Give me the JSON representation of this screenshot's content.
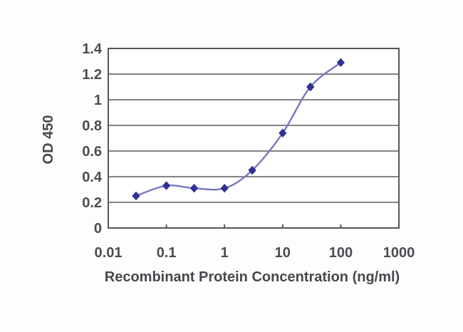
{
  "figure": {
    "background_color": "#fdfdfd",
    "plot_background_color": "#ffffff"
  },
  "chart_data": {
    "type": "line",
    "title": "",
    "xlabel": "Recombinant Protein Concentration (ng/ml)",
    "ylabel": "OD 450",
    "x_scale": "log",
    "xlim": [
      0.01,
      1000
    ],
    "x_ticks": [
      0.01,
      0.1,
      1,
      10,
      100,
      1000
    ],
    "x_tick_labels": [
      "0.01",
      "0.1",
      "1",
      "10",
      "100",
      "1000"
    ],
    "ylim": [
      0,
      1.4
    ],
    "y_ticks": [
      0,
      0.2,
      0.4,
      0.6,
      0.8,
      1,
      1.2,
      1.4
    ],
    "y_tick_labels": [
      "0",
      "0.2",
      "0.4",
      "0.6",
      "0.8",
      "1",
      "1.2",
      "1.4"
    ],
    "grid": "horizontal",
    "legend_position": "none",
    "series": [
      {
        "name": "OD 450",
        "x": [
          0.03,
          0.1,
          0.3,
          1,
          3,
          10,
          30,
          100
        ],
        "y": [
          0.25,
          0.33,
          0.31,
          0.31,
          0.45,
          0.74,
          1.1,
          1.29
        ],
        "marker": "diamond"
      }
    ],
    "colors": {
      "line": "#7678c0",
      "marker": "#2f3293",
      "grid": "#5a5a5e",
      "axis": "#56565a",
      "text": "#4c4c52"
    }
  }
}
